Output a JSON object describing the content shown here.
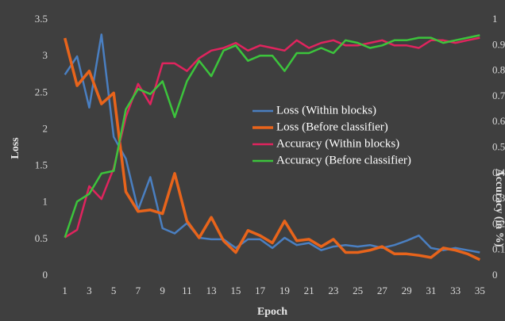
{
  "chart_data": {
    "type": "line",
    "x_label": "Epoch",
    "y_label": "Loss",
    "y2_label": "Accuracy (in %)",
    "x": [
      1,
      2,
      3,
      4,
      5,
      6,
      7,
      8,
      9,
      10,
      11,
      12,
      13,
      14,
      15,
      16,
      17,
      18,
      19,
      20,
      21,
      22,
      23,
      24,
      25,
      26,
      27,
      28,
      29,
      30,
      31,
      32,
      33,
      34,
      35
    ],
    "xlim": [
      0.5,
      35.5
    ],
    "xticks": [
      1,
      3,
      5,
      7,
      9,
      11,
      13,
      15,
      17,
      19,
      21,
      23,
      25,
      27,
      29,
      31,
      33,
      35
    ],
    "ylim": [
      0,
      3.5
    ],
    "yticks": [
      0,
      0.5,
      1,
      1.5,
      2,
      2.5,
      3,
      3.5
    ],
    "y2lim": [
      0,
      1
    ],
    "y2ticks": [
      0,
      0.1,
      0.2,
      0.3,
      0.4,
      0.5,
      0.6,
      0.7,
      0.8,
      0.9,
      1
    ],
    "series": [
      {
        "name": "Loss (Within blocks)",
        "color": "#4a7fc1",
        "values": [
          2.75,
          3.0,
          2.3,
          3.3,
          1.9,
          1.6,
          0.9,
          1.35,
          0.65,
          0.58,
          0.72,
          0.52,
          0.5,
          0.5,
          0.38,
          0.5,
          0.5,
          0.38,
          0.52,
          0.42,
          0.45,
          0.35,
          0.4,
          0.42,
          0.4,
          0.42,
          0.38,
          0.42,
          0.48,
          0.55,
          0.38,
          0.35,
          0.38,
          0.35,
          0.32
        ]
      },
      {
        "name": "Loss (Before classifier)",
        "color": "#e8641b",
        "values": [
          3.25,
          2.6,
          2.8,
          2.35,
          2.5,
          1.15,
          0.88,
          0.9,
          0.85,
          1.4,
          0.75,
          0.52,
          0.8,
          0.48,
          0.32,
          0.62,
          0.55,
          0.45,
          0.75,
          0.48,
          0.5,
          0.4,
          0.5,
          0.32,
          0.32,
          0.35,
          0.4,
          0.3,
          0.3,
          0.28,
          0.25,
          0.38,
          0.35,
          0.3,
          0.22
        ]
      },
      {
        "name": "Accuracy (Within blocks)",
        "color": "#e0245e",
        "axis": "y2",
        "values": [
          0.15,
          0.18,
          0.35,
          0.3,
          0.42,
          0.62,
          0.75,
          0.67,
          0.83,
          0.83,
          0.8,
          0.85,
          0.88,
          0.89,
          0.91,
          0.88,
          0.9,
          0.89,
          0.88,
          0.92,
          0.89,
          0.91,
          0.92,
          0.9,
          0.9,
          0.91,
          0.92,
          0.9,
          0.9,
          0.89,
          0.92,
          0.92,
          0.91,
          0.92,
          0.93
        ]
      },
      {
        "name": "Accuracy (Before classifier)",
        "color": "#3cc43c",
        "axis": "y2",
        "values": [
          0.15,
          0.29,
          0.32,
          0.4,
          0.41,
          0.65,
          0.73,
          0.71,
          0.76,
          0.62,
          0.76,
          0.84,
          0.78,
          0.88,
          0.9,
          0.84,
          0.86,
          0.86,
          0.8,
          0.87,
          0.87,
          0.89,
          0.87,
          0.92,
          0.91,
          0.89,
          0.9,
          0.92,
          0.92,
          0.93,
          0.93,
          0.91,
          0.92,
          0.93,
          0.94
        ]
      }
    ]
  }
}
